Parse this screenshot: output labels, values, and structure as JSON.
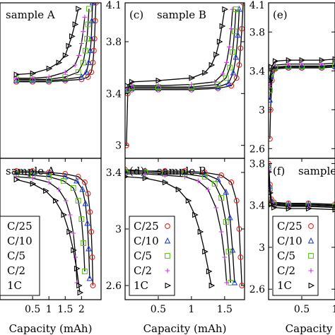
{
  "legend_entries": [
    {
      "label": "C/25",
      "marker": "circle",
      "color": "#e3261f"
    },
    {
      "label": "C/10",
      "marker": "triangle-up",
      "color": "#1f3fd6"
    },
    {
      "label": "C/5",
      "marker": "square",
      "color": "#5fc21f"
    },
    {
      "label": "C/2",
      "marker": "plus",
      "color": "#c23fd6"
    },
    {
      "label": "1C",
      "marker": "triangle-right",
      "color": "#000000"
    }
  ],
  "chart_data": [
    {
      "panel": "a",
      "type": "scatter",
      "title": "sample A",
      "xlabel": "",
      "ylabel": "",
      "xlim": [
        -0.5,
        2.6
      ],
      "ylim": [
        2.8,
        4.1
      ],
      "xticks": [],
      "yticks": [],
      "legend": "none",
      "series": [
        {
          "name": "C/25",
          "x": [
            0.0,
            0.5,
            1.0,
            1.5,
            2.0,
            2.2,
            2.3,
            2.35,
            2.38,
            2.4,
            2.42,
            2.44
          ],
          "y": [
            3.44,
            3.44,
            3.44,
            3.45,
            3.46,
            3.48,
            3.52,
            3.6,
            3.7,
            3.8,
            3.95,
            4.1
          ]
        },
        {
          "name": "C/10",
          "x": [
            0.0,
            0.5,
            1.0,
            1.5,
            2.0,
            2.15,
            2.22,
            2.27,
            2.3,
            2.32,
            2.34
          ],
          "y": [
            3.45,
            3.45,
            3.45,
            3.46,
            3.48,
            3.52,
            3.6,
            3.7,
            3.8,
            3.95,
            4.1
          ]
        },
        {
          "name": "C/5",
          "x": [
            0.0,
            0.5,
            1.0,
            1.5,
            1.9,
            2.05,
            2.12,
            2.17,
            2.2,
            2.23
          ],
          "y": [
            3.46,
            3.46,
            3.46,
            3.48,
            3.52,
            3.6,
            3.7,
            3.8,
            3.92,
            4.05
          ]
        },
        {
          "name": "C/2",
          "x": [
            0.0,
            0.5,
            1.0,
            1.5,
            1.8,
            1.92,
            2.0,
            2.05,
            2.1
          ],
          "y": [
            3.47,
            3.47,
            3.48,
            3.52,
            3.58,
            3.66,
            3.76,
            3.86,
            3.98
          ]
        },
        {
          "name": "1C",
          "x": [
            0.0,
            0.5,
            1.0,
            1.3,
            1.5,
            1.6,
            1.7,
            1.8,
            1.9
          ],
          "y": [
            3.5,
            3.51,
            3.55,
            3.6,
            3.66,
            3.74,
            3.82,
            3.92,
            4.05
          ]
        }
      ]
    },
    {
      "panel": "c",
      "type": "scatter",
      "title": "sample B",
      "xlabel": "",
      "ylabel": "",
      "xlim": [
        0.0,
        1.8
      ],
      "ylim": [
        2.9,
        4.1
      ],
      "xticks": [],
      "yticks": [
        3.0,
        3.4,
        3.8,
        4.1
      ],
      "legend": "none",
      "series": [
        {
          "name": "C/25",
          "x": [
            0.02,
            0.04,
            0.1,
            0.5,
            1.0,
            1.4,
            1.6,
            1.68,
            1.72,
            1.74,
            1.76,
            1.78
          ],
          "y": [
            3.0,
            3.4,
            3.43,
            3.43,
            3.43,
            3.44,
            3.46,
            3.52,
            3.62,
            3.75,
            3.9,
            4.1
          ]
        },
        {
          "name": "C/10",
          "x": [
            0.03,
            0.1,
            0.5,
            1.0,
            1.4,
            1.56,
            1.63,
            1.67,
            1.7,
            1.72
          ],
          "y": [
            3.42,
            3.44,
            3.44,
            3.44,
            3.45,
            3.48,
            3.56,
            3.68,
            3.85,
            4.05
          ]
        },
        {
          "name": "C/5",
          "x": [
            0.03,
            0.1,
            0.5,
            1.0,
            1.4,
            1.52,
            1.58,
            1.62,
            1.65,
            1.67
          ],
          "y": [
            3.43,
            3.45,
            3.45,
            3.45,
            3.47,
            3.52,
            3.6,
            3.72,
            3.88,
            4.05
          ]
        },
        {
          "name": "C/2",
          "x": [
            0.03,
            0.1,
            0.5,
            1.0,
            1.35,
            1.47,
            1.53,
            1.57,
            1.6,
            1.62
          ],
          "y": [
            3.44,
            3.46,
            3.46,
            3.47,
            3.49,
            3.55,
            3.64,
            3.76,
            3.9,
            4.05
          ]
        },
        {
          "name": "1C",
          "x": [
            0.03,
            0.1,
            0.5,
            1.0,
            1.2,
            1.3,
            1.37,
            1.42,
            1.46,
            1.5
          ],
          "y": [
            3.46,
            3.49,
            3.5,
            3.52,
            3.56,
            3.62,
            3.7,
            3.8,
            3.92,
            4.05
          ]
        }
      ]
    },
    {
      "panel": "e",
      "type": "scatter",
      "title": "",
      "xlabel": "",
      "ylabel": "",
      "xlim": [
        0.0,
        1.0
      ],
      "ylim": [
        2.5,
        4.1
      ],
      "xticks": [],
      "yticks": [
        2.6,
        3.0,
        3.4,
        3.8,
        4.1
      ],
      "legend": "none",
      "series": [
        {
          "name": "C/25",
          "x": [
            0.02,
            0.03,
            0.05,
            0.1,
            0.3,
            0.5,
            0.8,
            1.0
          ],
          "y": [
            2.7,
            3.0,
            3.3,
            3.42,
            3.43,
            3.43,
            3.43,
            3.44
          ]
        },
        {
          "name": "C/10",
          "x": [
            0.02,
            0.04,
            0.1,
            0.3,
            0.5,
            0.8,
            1.0
          ],
          "y": [
            3.1,
            3.35,
            3.43,
            3.44,
            3.44,
            3.44,
            3.45
          ]
        },
        {
          "name": "C/5",
          "x": [
            0.02,
            0.04,
            0.1,
            0.3,
            0.5,
            0.8,
            1.0
          ],
          "y": [
            3.2,
            3.38,
            3.44,
            3.45,
            3.45,
            3.45,
            3.46
          ]
        },
        {
          "name": "C/2",
          "x": [
            0.02,
            0.04,
            0.1,
            0.3,
            0.5,
            0.8,
            1.0
          ],
          "y": [
            3.25,
            3.4,
            3.46,
            3.47,
            3.47,
            3.47,
            3.48
          ]
        },
        {
          "name": "1C",
          "x": [
            0.02,
            0.04,
            0.1,
            0.3,
            0.5,
            0.8,
            1.0
          ],
          "y": [
            3.3,
            3.44,
            3.5,
            3.51,
            3.51,
            3.51,
            3.52
          ]
        }
      ]
    },
    {
      "panel": "b",
      "type": "scatter",
      "title": "sample A",
      "xlabel": "Capacity (mAh)",
      "ylabel": "",
      "xlim": [
        -0.5,
        2.6
      ],
      "ylim": [
        2.5,
        3.5
      ],
      "xticks": [
        0.5,
        1.0,
        1.5,
        2.0
      ],
      "yticks": [],
      "legend": "lower-left",
      "series": [
        {
          "name": "C/25",
          "x": [
            0.0,
            0.5,
            1.0,
            1.5,
            1.9,
            2.1,
            2.2,
            2.26,
            2.3,
            2.33,
            2.35
          ],
          "y": [
            3.41,
            3.41,
            3.4,
            3.39,
            3.37,
            3.33,
            3.25,
            3.12,
            2.98,
            2.8,
            2.6
          ]
        },
        {
          "name": "C/10",
          "x": [
            0.0,
            0.5,
            1.0,
            1.5,
            1.85,
            2.03,
            2.12,
            2.18,
            2.22,
            2.25
          ],
          "y": [
            3.4,
            3.4,
            3.39,
            3.37,
            3.34,
            3.28,
            3.18,
            3.04,
            2.86,
            2.65
          ]
        },
        {
          "name": "C/5",
          "x": [
            0.0,
            0.5,
            1.0,
            1.45,
            1.75,
            1.9,
            2.0,
            2.06,
            2.1
          ],
          "y": [
            3.39,
            3.38,
            3.37,
            3.34,
            3.29,
            3.2,
            3.07,
            2.9,
            2.7
          ]
        },
        {
          "name": "C/2",
          "x": [
            0.0,
            0.5,
            1.0,
            1.3,
            1.52,
            1.65,
            1.75,
            1.82,
            1.86
          ],
          "y": [
            3.37,
            3.36,
            3.33,
            3.28,
            3.2,
            3.1,
            2.97,
            2.8,
            2.62
          ]
        },
        {
          "name": "1C",
          "x": [
            0.0,
            0.5,
            0.9,
            1.2,
            1.45,
            1.62,
            1.75,
            1.85,
            1.92,
            1.95
          ],
          "y": [
            3.35,
            3.32,
            3.27,
            3.2,
            3.1,
            2.98,
            2.85,
            2.72,
            2.6,
            2.55
          ]
        }
      ]
    },
    {
      "panel": "d",
      "type": "scatter",
      "title": "sample B",
      "xlabel": "Capacity (mAh)",
      "ylabel": "",
      "xlim": [
        0.0,
        1.8
      ],
      "ylim": [
        2.5,
        3.5
      ],
      "xticks": [
        0.5,
        1.0,
        1.5
      ],
      "yticks": [
        2.6,
        3.0,
        3.4
      ],
      "legend": "lower-left",
      "series": [
        {
          "name": "C/25",
          "x": [
            0.0,
            0.3,
            0.6,
            0.9,
            1.2,
            1.45,
            1.6,
            1.68,
            1.72,
            1.74,
            1.76
          ],
          "y": [
            3.42,
            3.41,
            3.41,
            3.41,
            3.4,
            3.38,
            3.33,
            3.2,
            3.0,
            2.8,
            2.6
          ]
        },
        {
          "name": "C/10",
          "x": [
            0.0,
            0.3,
            0.6,
            0.9,
            1.2,
            1.4,
            1.52,
            1.58,
            1.62,
            1.65
          ],
          "y": [
            3.41,
            3.41,
            3.4,
            3.4,
            3.39,
            3.35,
            3.26,
            3.08,
            2.85,
            2.62
          ]
        },
        {
          "name": "C/5",
          "x": [
            0.0,
            0.3,
            0.6,
            0.9,
            1.2,
            1.35,
            1.45,
            1.52,
            1.56,
            1.59
          ],
          "y": [
            3.4,
            3.4,
            3.39,
            3.39,
            3.37,
            3.32,
            3.22,
            3.05,
            2.84,
            2.62
          ]
        },
        {
          "name": "C/2",
          "x": [
            0.0,
            0.3,
            0.6,
            0.9,
            1.1,
            1.25,
            1.37,
            1.45,
            1.5,
            1.53
          ],
          "y": [
            3.39,
            3.39,
            3.38,
            3.37,
            3.34,
            3.28,
            3.15,
            2.98,
            2.8,
            2.62
          ]
        },
        {
          "name": "1C",
          "x": [
            0.0,
            0.3,
            0.6,
            0.8,
            0.95,
            1.05,
            1.13,
            1.2,
            1.26,
            1.3
          ],
          "y": [
            3.37,
            3.36,
            3.33,
            3.28,
            3.2,
            3.1,
            2.98,
            2.84,
            2.7,
            2.6
          ]
        }
      ]
    },
    {
      "panel": "f",
      "type": "scatter",
      "title": "sample",
      "xlabel": "Capacity",
      "ylabel": "",
      "xlim": [
        0.0,
        1.0
      ],
      "ylim": [
        2.5,
        3.85
      ],
      "xticks": [
        0.5,
        1.0
      ],
      "yticks": [
        2.6,
        3.0,
        3.4,
        3.8
      ],
      "legend": "lower-left",
      "series": [
        {
          "name": "C/25",
          "x": [
            0.0,
            0.02,
            0.04,
            0.08,
            0.3,
            0.6,
            1.0
          ],
          "y": [
            3.8,
            3.6,
            3.46,
            3.43,
            3.42,
            3.42,
            3.41
          ]
        },
        {
          "name": "C/10",
          "x": [
            0.0,
            0.02,
            0.04,
            0.08,
            0.3,
            0.6,
            1.0
          ],
          "y": [
            3.78,
            3.58,
            3.45,
            3.42,
            3.41,
            3.41,
            3.4
          ]
        },
        {
          "name": "C/5",
          "x": [
            0.0,
            0.02,
            0.04,
            0.08,
            0.3,
            0.6,
            1.0
          ],
          "y": [
            3.76,
            3.56,
            3.44,
            3.41,
            3.4,
            3.4,
            3.39
          ]
        },
        {
          "name": "C/2",
          "x": [
            0.0,
            0.02,
            0.04,
            0.08,
            0.3,
            0.6,
            1.0
          ],
          "y": [
            3.74,
            3.54,
            3.43,
            3.4,
            3.39,
            3.39,
            3.38
          ]
        },
        {
          "name": "1C",
          "x": [
            0.0,
            0.02,
            0.04,
            0.08,
            0.3,
            0.6,
            1.0
          ],
          "y": [
            3.72,
            3.52,
            3.41,
            3.38,
            3.37,
            3.37,
            3.36
          ]
        }
      ]
    }
  ],
  "panel_labels": {
    "c": "(c)",
    "d": "(d)",
    "e": "(e)",
    "f": "(f)"
  }
}
